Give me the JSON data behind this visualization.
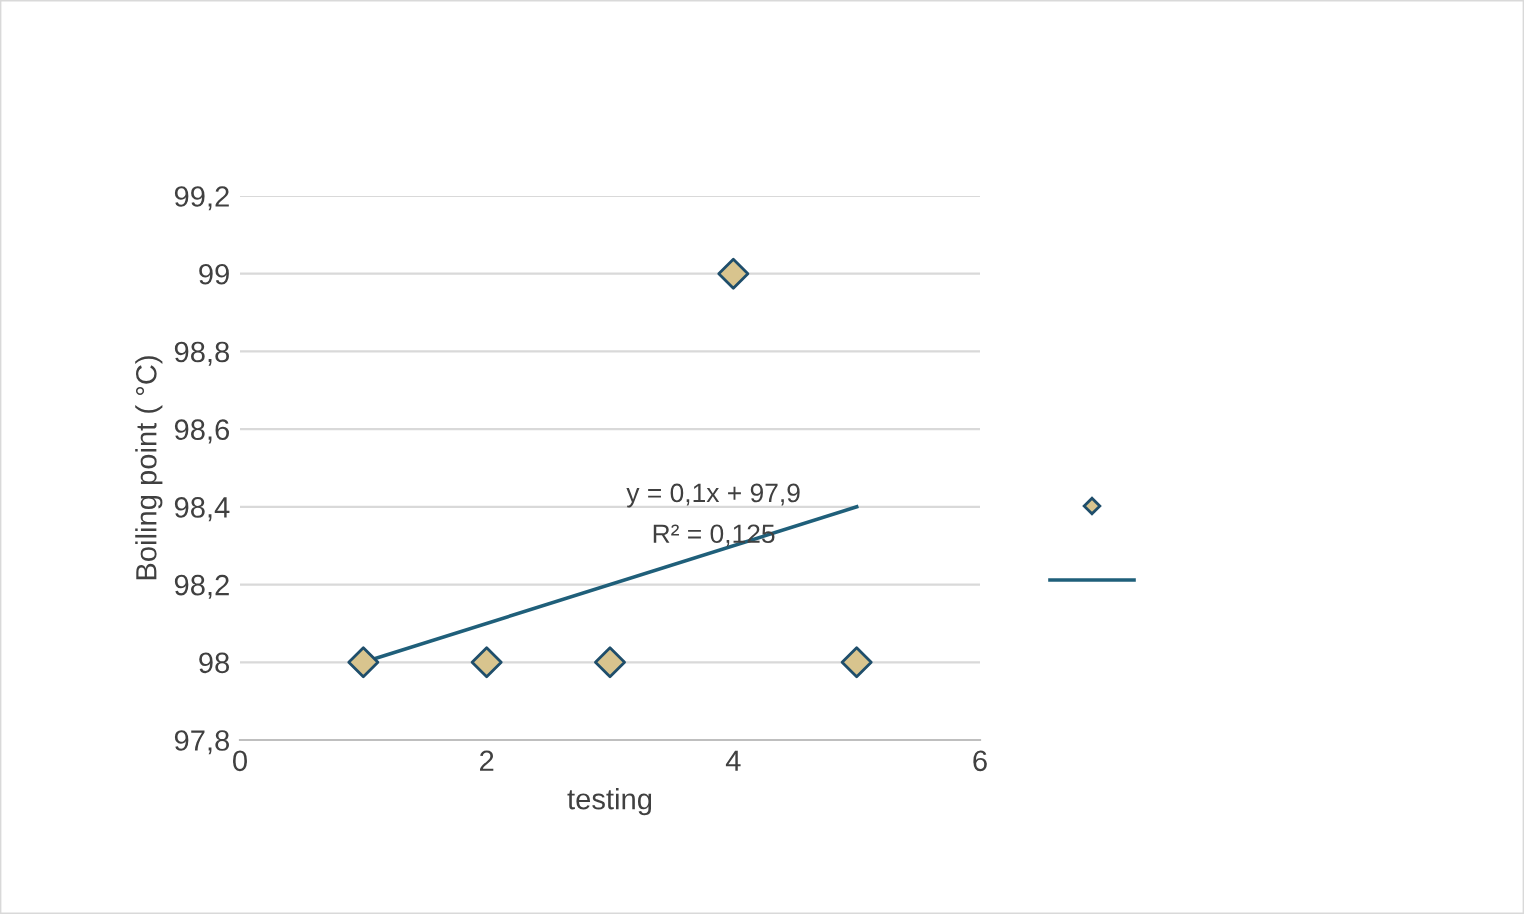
{
  "chart_data": {
    "type": "scatter",
    "xlabel": "testing",
    "ylabel": "Boiling point ( °C)",
    "x": [
      1,
      2,
      3,
      4,
      5
    ],
    "series": [
      {
        "color": "#d8c48e",
        "values": [
          98,
          98,
          98,
          99,
          98
        ],
        "marker": "diamond"
      },
      {
        "type": "line",
        "color": "#1f5f7a",
        "x": [
          1,
          5
        ],
        "values": [
          98.0,
          98.4
        ],
        "marker": "none"
      }
    ],
    "xlim": [
      0,
      6
    ],
    "xticks": [
      0,
      2,
      4,
      6
    ],
    "ylim": [
      97.8,
      99.2
    ],
    "yticks": [
      {
        "value": 97.8,
        "label": "97,8"
      },
      {
        "value": 98,
        "label": "98"
      },
      {
        "value": 98.2,
        "label": "98,2"
      },
      {
        "value": 98.4,
        "label": "98,4"
      },
      {
        "value": 98.6,
        "label": "98,6"
      },
      {
        "value": 98.8,
        "label": "98,8"
      },
      {
        "value": 99,
        "label": "99"
      },
      {
        "value": 99.2,
        "label": "99,2"
      }
    ],
    "grid": "y",
    "annotations": [
      "y = 0,1x + 97,9",
      "R² = 0,125"
    ]
  }
}
